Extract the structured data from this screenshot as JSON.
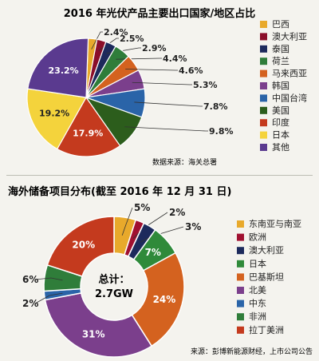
{
  "colors": {
    "brazil": "#e8a92b",
    "australia": "#8b0f2a",
    "thailand": "#1d2a5c",
    "netherlands": "#2f7d3a",
    "malaysia": "#d4621f",
    "korea": "#7b3f8c",
    "taiwan": "#2a64a8",
    "usa": "#2c5d1c",
    "india": "#c43a1e",
    "japan": "#f4d33c",
    "other": "#5a3a8f",
    "sea": "#e8a92b",
    "europe": "#a01030",
    "aus2": "#1d2a5c",
    "japan2": "#2f8a3a",
    "pakistan": "#d4621f",
    "namerica": "#7b3f8c",
    "mideast": "#2a64a8",
    "africa": "#2f7d3a",
    "latam": "#c43a1e"
  },
  "chart_data": [
    {
      "type": "pie",
      "title": "2016 年光伏产品主要出口国家/地区占比",
      "source": "数据来源：海关总署",
      "categories": [
        "巴西",
        "澳大利亚",
        "泰国",
        "荷兰",
        "马来西亚",
        "韩国",
        "中国台湾",
        "美国",
        "印度",
        "日本",
        "其他"
      ],
      "values": [
        2.4,
        2.5,
        2.9,
        4.4,
        4.6,
        5.3,
        7.8,
        9.8,
        17.9,
        19.2,
        23.2
      ],
      "labels": [
        "2.4%",
        "2.5%",
        "2.9%",
        "4.4%",
        "4.6%",
        "5.3%",
        "7.8%",
        "9.8%",
        "17.9%",
        "19.2%",
        "23.2%"
      ],
      "legend": "right"
    },
    {
      "type": "pie",
      "subtype": "donut",
      "title": "海外储备项目分布(截至 2016 年 12 月 31 日)",
      "center_label": "总计：",
      "center_value": "2.7GW",
      "source": "来源：彭博新能源财经，上市公司公告",
      "categories": [
        "东南亚与南亚",
        "欧洲",
        "澳大利亚",
        "日本",
        "巴基斯坦",
        "北美",
        "中东",
        "非洲",
        "拉丁美洲"
      ],
      "values": [
        5,
        2,
        3,
        7,
        24,
        31,
        2,
        6,
        20
      ],
      "labels": [
        "5%",
        "2%",
        "3%",
        "7%",
        "24%",
        "31%",
        "2%",
        "6%",
        "20%"
      ],
      "legend": "right"
    }
  ]
}
